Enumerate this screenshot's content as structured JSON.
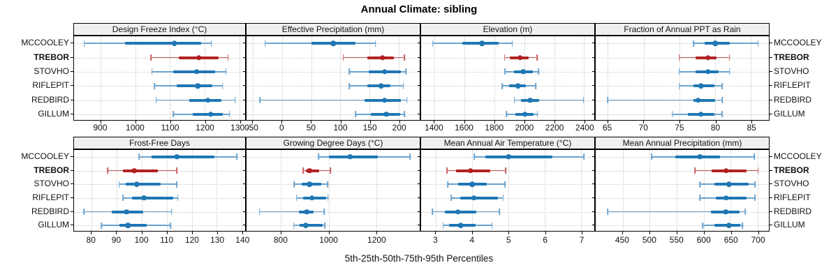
{
  "chart_data": {
    "type": "dotplot",
    "title": "Annual Climate: sibling",
    "caption": "5th-25th-50th-75th-95th Percentiles",
    "percentiles": [
      5,
      25,
      50,
      75,
      95
    ],
    "sites": [
      "MCCOOLEY",
      "TREBOR",
      "STOVHO",
      "RIFLEPIT",
      "REDBIRD",
      "GILLUM"
    ],
    "highlighted_site": "TREBOR",
    "colors": {
      "normal": "#1f77b4",
      "normal_light": "#6ba3cf",
      "highlight": "#b22222",
      "highlight_light": "#c75e5e",
      "grid": "#c8c8c8",
      "strip_bg": "#f0f0f0",
      "border": "#000000"
    },
    "layout": {
      "rows": 2,
      "cols": 4,
      "grid": "dotted",
      "legend": "none"
    },
    "panels": [
      {
        "title": "Design Freeze Index (°C)",
        "row": 0,
        "col": 0,
        "xlim": [
          823,
          1317
        ],
        "ticks": [
          900,
          1000,
          1100,
          1200,
          1300
        ],
        "series": [
          {
            "site": "MCCOOLEY",
            "values": [
              853,
              970,
              1113,
              1190,
              1220
            ]
          },
          {
            "site": "TREBOR",
            "values": [
              1045,
              1125,
              1183,
              1240,
              1268
            ]
          },
          {
            "site": "STOVHO",
            "values": [
              1048,
              1110,
              1177,
              1230,
              1262
            ]
          },
          {
            "site": "RIFLEPIT",
            "values": [
              1055,
              1120,
              1180,
              1222,
              1252
            ]
          },
          {
            "site": "REDBIRD",
            "values": [
              1060,
              1155,
              1210,
              1248,
              1288
            ]
          },
          {
            "site": "GILLUM",
            "values": [
              1110,
              1165,
              1218,
              1252,
              1272
            ]
          }
        ]
      },
      {
        "title": "Effective Precipitation (mm)",
        "row": 0,
        "col": 1,
        "xlim": [
          -61,
          236
        ],
        "ticks": [
          -50,
          0,
          50,
          100,
          150,
          200
        ],
        "series": [
          {
            "site": "MCCOOLEY",
            "values": [
              -29,
              50,
              88,
              126,
              160
            ]
          },
          {
            "site": "TREBOR",
            "values": [
              105,
              146,
              172,
              192,
              210
            ]
          },
          {
            "site": "STOVHO",
            "values": [
              115,
              148,
              176,
              204,
              212
            ]
          },
          {
            "site": "RIFLEPIT",
            "values": [
              115,
              146,
              170,
              186,
              208
            ]
          },
          {
            "site": "REDBIRD",
            "values": [
              -38,
              141,
              176,
              204,
              214
            ]
          },
          {
            "site": "GILLUM",
            "values": [
              126,
              152,
              179,
              202,
              210
            ]
          }
        ]
      },
      {
        "title": "Elevation (m)",
        "row": 0,
        "col": 2,
        "xlim": [
          1310,
          2468
        ],
        "ticks": [
          1400,
          1600,
          1800,
          2000,
          2200,
          2400
        ],
        "series": [
          {
            "site": "MCCOOLEY",
            "values": [
              1388,
              1585,
              1718,
              1830,
              1920
            ]
          },
          {
            "site": "TREBOR",
            "values": [
              1869,
              1905,
              1972,
              2030,
              2085
            ]
          },
          {
            "site": "STOVHO",
            "values": [
              1872,
              1930,
              1992,
              2055,
              2095
            ]
          },
          {
            "site": "RIFLEPIT",
            "values": [
              1853,
              1900,
              1958,
              2010,
              2077
            ]
          },
          {
            "site": "REDBIRD",
            "values": [
              1935,
              1977,
              2040,
              2100,
              2397
            ]
          },
          {
            "site": "GILLUM",
            "values": [
              1881,
              1940,
              2005,
              2060,
              2089
            ]
          }
        ]
      },
      {
        "title": "Fraction of Annual PPT as Rain",
        "row": 0,
        "col": 3,
        "xlim": [
          63.3,
          87.5
        ],
        "ticks": [
          65,
          70,
          75,
          80,
          85
        ],
        "series": [
          {
            "site": "MCCOOLEY",
            "values": [
              77,
              78.5,
              80,
              82,
              86
            ]
          },
          {
            "site": "TREBOR",
            "values": [
              75,
              77.3,
              79,
              80.2,
              82
            ]
          },
          {
            "site": "STOVHO",
            "values": [
              75,
              77.3,
              79,
              80.5,
              82
            ]
          },
          {
            "site": "RIFLEPIT",
            "values": [
              75,
              77,
              78,
              79.9,
              81
            ]
          },
          {
            "site": "REDBIRD",
            "values": [
              65,
              77,
              77.6,
              80,
              81
            ]
          },
          {
            "site": "GILLUM",
            "values": [
              74,
              76.2,
              78,
              79.9,
              81
            ]
          }
        ]
      },
      {
        "title": "Frost-Free Days",
        "row": 1,
        "col": 0,
        "xlim": [
          73,
          141.3
        ],
        "ticks": [
          80,
          90,
          100,
          110,
          120,
          130,
          140
        ],
        "series": [
          {
            "site": "MCCOOLEY",
            "values": [
              99,
              104,
              114,
              129,
              138
            ]
          },
          {
            "site": "TREBOR",
            "values": [
              86.5,
              92.5,
              97,
              106.5,
              114
            ]
          },
          {
            "site": "STOVHO",
            "values": [
              91,
              93.5,
              98,
              107.5,
              114
            ]
          },
          {
            "site": "RIFLEPIT",
            "values": [
              92.5,
              96,
              101,
              112.5,
              114.5
            ]
          },
          {
            "site": "REDBIRD",
            "values": [
              77,
              88,
              94,
              100.5,
              112
            ]
          },
          {
            "site": "GILLUM",
            "values": [
              84,
              91,
              94.5,
              102,
              111.5
            ]
          }
        ]
      },
      {
        "title": "Growing Degree Days (°C)",
        "row": 1,
        "col": 1,
        "xlim": [
          655,
          1382
        ],
        "ticks": [
          800,
          1000,
          1200
        ],
        "series": [
          {
            "site": "MCCOOLEY",
            "values": [
              958,
              1001,
              1090,
              1205,
              1342
            ]
          },
          {
            "site": "TREBOR",
            "values": [
              893,
              904,
              920,
              960,
              1007
            ]
          },
          {
            "site": "STOVHO",
            "values": [
              855,
              887,
              919,
              969,
              996
            ]
          },
          {
            "site": "RIFLEPIT",
            "values": [
              865,
              892,
              930,
              988,
              997
            ]
          },
          {
            "site": "REDBIRD",
            "values": [
              710,
              876,
              908,
              937,
              981
            ]
          },
          {
            "site": "GILLUM",
            "values": [
              853,
              878,
              903,
              975,
              984
            ]
          }
        ]
      },
      {
        "title": "Mean Annual Air Temperature (°C)",
        "row": 1,
        "col": 2,
        "xlim": [
          2.59,
          7.36
        ],
        "ticks": [
          3,
          4,
          5,
          6,
          7
        ],
        "series": [
          {
            "site": "MCCOOLEY",
            "values": [
              4.05,
              4.35,
              5.0,
              6.2,
              7.08
            ]
          },
          {
            "site": "TREBOR",
            "values": [
              3.3,
              3.55,
              3.95,
              4.5,
              4.92
            ]
          },
          {
            "site": "STOVHO",
            "values": [
              3.32,
              3.6,
              4.0,
              4.4,
              4.9
            ]
          },
          {
            "site": "RIFLEPIT",
            "values": [
              3.42,
              3.67,
              4.05,
              4.7,
              4.85
            ]
          },
          {
            "site": "REDBIRD",
            "values": [
              2.9,
              3.25,
              3.6,
              4.1,
              4.75
            ]
          },
          {
            "site": "GILLUM",
            "values": [
              3.2,
              3.35,
              3.68,
              4.1,
              4.55
            ]
          }
        ]
      },
      {
        "title": "Mean Annual Precipitation (mm)",
        "row": 1,
        "col": 3,
        "xlim": [
          400,
          721
        ],
        "ticks": [
          450,
          500,
          550,
          600,
          650,
          700
        ],
        "series": [
          {
            "site": "MCCOOLEY",
            "values": [
              504,
              547,
              593,
              630,
              694
            ]
          },
          {
            "site": "TREBOR",
            "values": [
              584,
              615,
              642,
              679,
              701
            ]
          },
          {
            "site": "STOVHO",
            "values": [
              593,
              620,
              647,
              684,
              695
            ]
          },
          {
            "site": "RIFLEPIT",
            "values": [
              593,
              622,
              642,
              679,
              695
            ]
          },
          {
            "site": "REDBIRD",
            "values": [
              422,
              614,
              641,
              666,
              677
            ]
          },
          {
            "site": "GILLUM",
            "values": [
              598,
              620,
              647,
              668,
              672
            ]
          }
        ]
      }
    ]
  }
}
